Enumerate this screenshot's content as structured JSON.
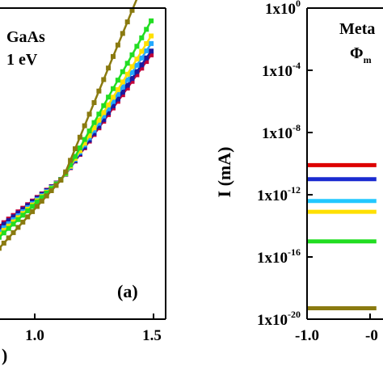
{
  "chart_data": [
    {
      "type": "line",
      "panel": "(a)",
      "annotation_lines": [
        "GaAs",
        "1 eV"
      ],
      "xlabel": ")",
      "x_ticks": [
        "1.0",
        "1.5"
      ],
      "x_visible_range": [
        0.55,
        1.52
      ],
      "y_visible_range": [
        0,
        1
      ],
      "colors": [
        "#c0003a",
        "#1a1aa0",
        "#22a8ff",
        "#ffe000",
        "#22dd22",
        "#8a7a10"
      ],
      "series": [
        {
          "x": [
            0.55,
            1.12,
            1.5
          ],
          "y": [
            0.1,
            0.365,
            0.69
          ]
        },
        {
          "x": [
            0.55,
            1.12,
            1.5
          ],
          "y": [
            0.09,
            0.365,
            0.7
          ]
        },
        {
          "x": [
            0.55,
            1.12,
            1.5
          ],
          "y": [
            0.07,
            0.365,
            0.72
          ]
        },
        {
          "x": [
            0.55,
            1.12,
            1.5
          ],
          "y": [
            0.055,
            0.365,
            0.74
          ]
        },
        {
          "x": [
            0.55,
            1.12,
            1.5
          ],
          "y": [
            0.04,
            0.365,
            0.78
          ]
        },
        {
          "x": [
            0.55,
            1.12,
            1.5
          ],
          "y": [
            -0.02,
            0.365,
            0.93
          ]
        }
      ]
    },
    {
      "type": "line",
      "y_scale": "log",
      "ylabel": "I (mA)",
      "annotation_lines": [
        "Meta",
        "Φ"
      ],
      "annotation_sub": "m",
      "x_ticks": [
        "-1.0",
        "-0"
      ],
      "y_ticks": [
        {
          "base": "1x10",
          "exp": "0"
        },
        {
          "base": "1x10",
          "exp": "-4"
        },
        {
          "base": "1x10",
          "exp": "-8"
        },
        {
          "base": "1x10",
          "exp": "-12"
        },
        {
          "base": "1x10",
          "exp": "-16"
        },
        {
          "base": "1x10",
          "exp": "-20"
        }
      ],
      "ylim_log10": [
        -20,
        0
      ],
      "x_visible_range": [
        -1.0,
        -0.45
      ],
      "colors": [
        "#dd0000",
        "#1a2ad0",
        "#22c8ff",
        "#ffe000",
        "#22dd22",
        "#8a7a10"
      ],
      "series": [
        {
          "x": [
            -1.0,
            -0.45
          ],
          "log10_y": [
            -10.1,
            -10.1
          ]
        },
        {
          "x": [
            -1.0,
            -0.45
          ],
          "log10_y": [
            -11.0,
            -11.0
          ]
        },
        {
          "x": [
            -1.0,
            -0.45
          ],
          "log10_y": [
            -12.4,
            -12.4
          ]
        },
        {
          "x": [
            -1.0,
            -0.45
          ],
          "log10_y": [
            -13.1,
            -13.1
          ]
        },
        {
          "x": [
            -1.0,
            -0.45
          ],
          "log10_y": [
            -15.0,
            -15.0
          ]
        },
        {
          "x": [
            -1.0,
            -0.45
          ],
          "log10_y": [
            -19.3,
            -19.3
          ]
        }
      ]
    }
  ]
}
